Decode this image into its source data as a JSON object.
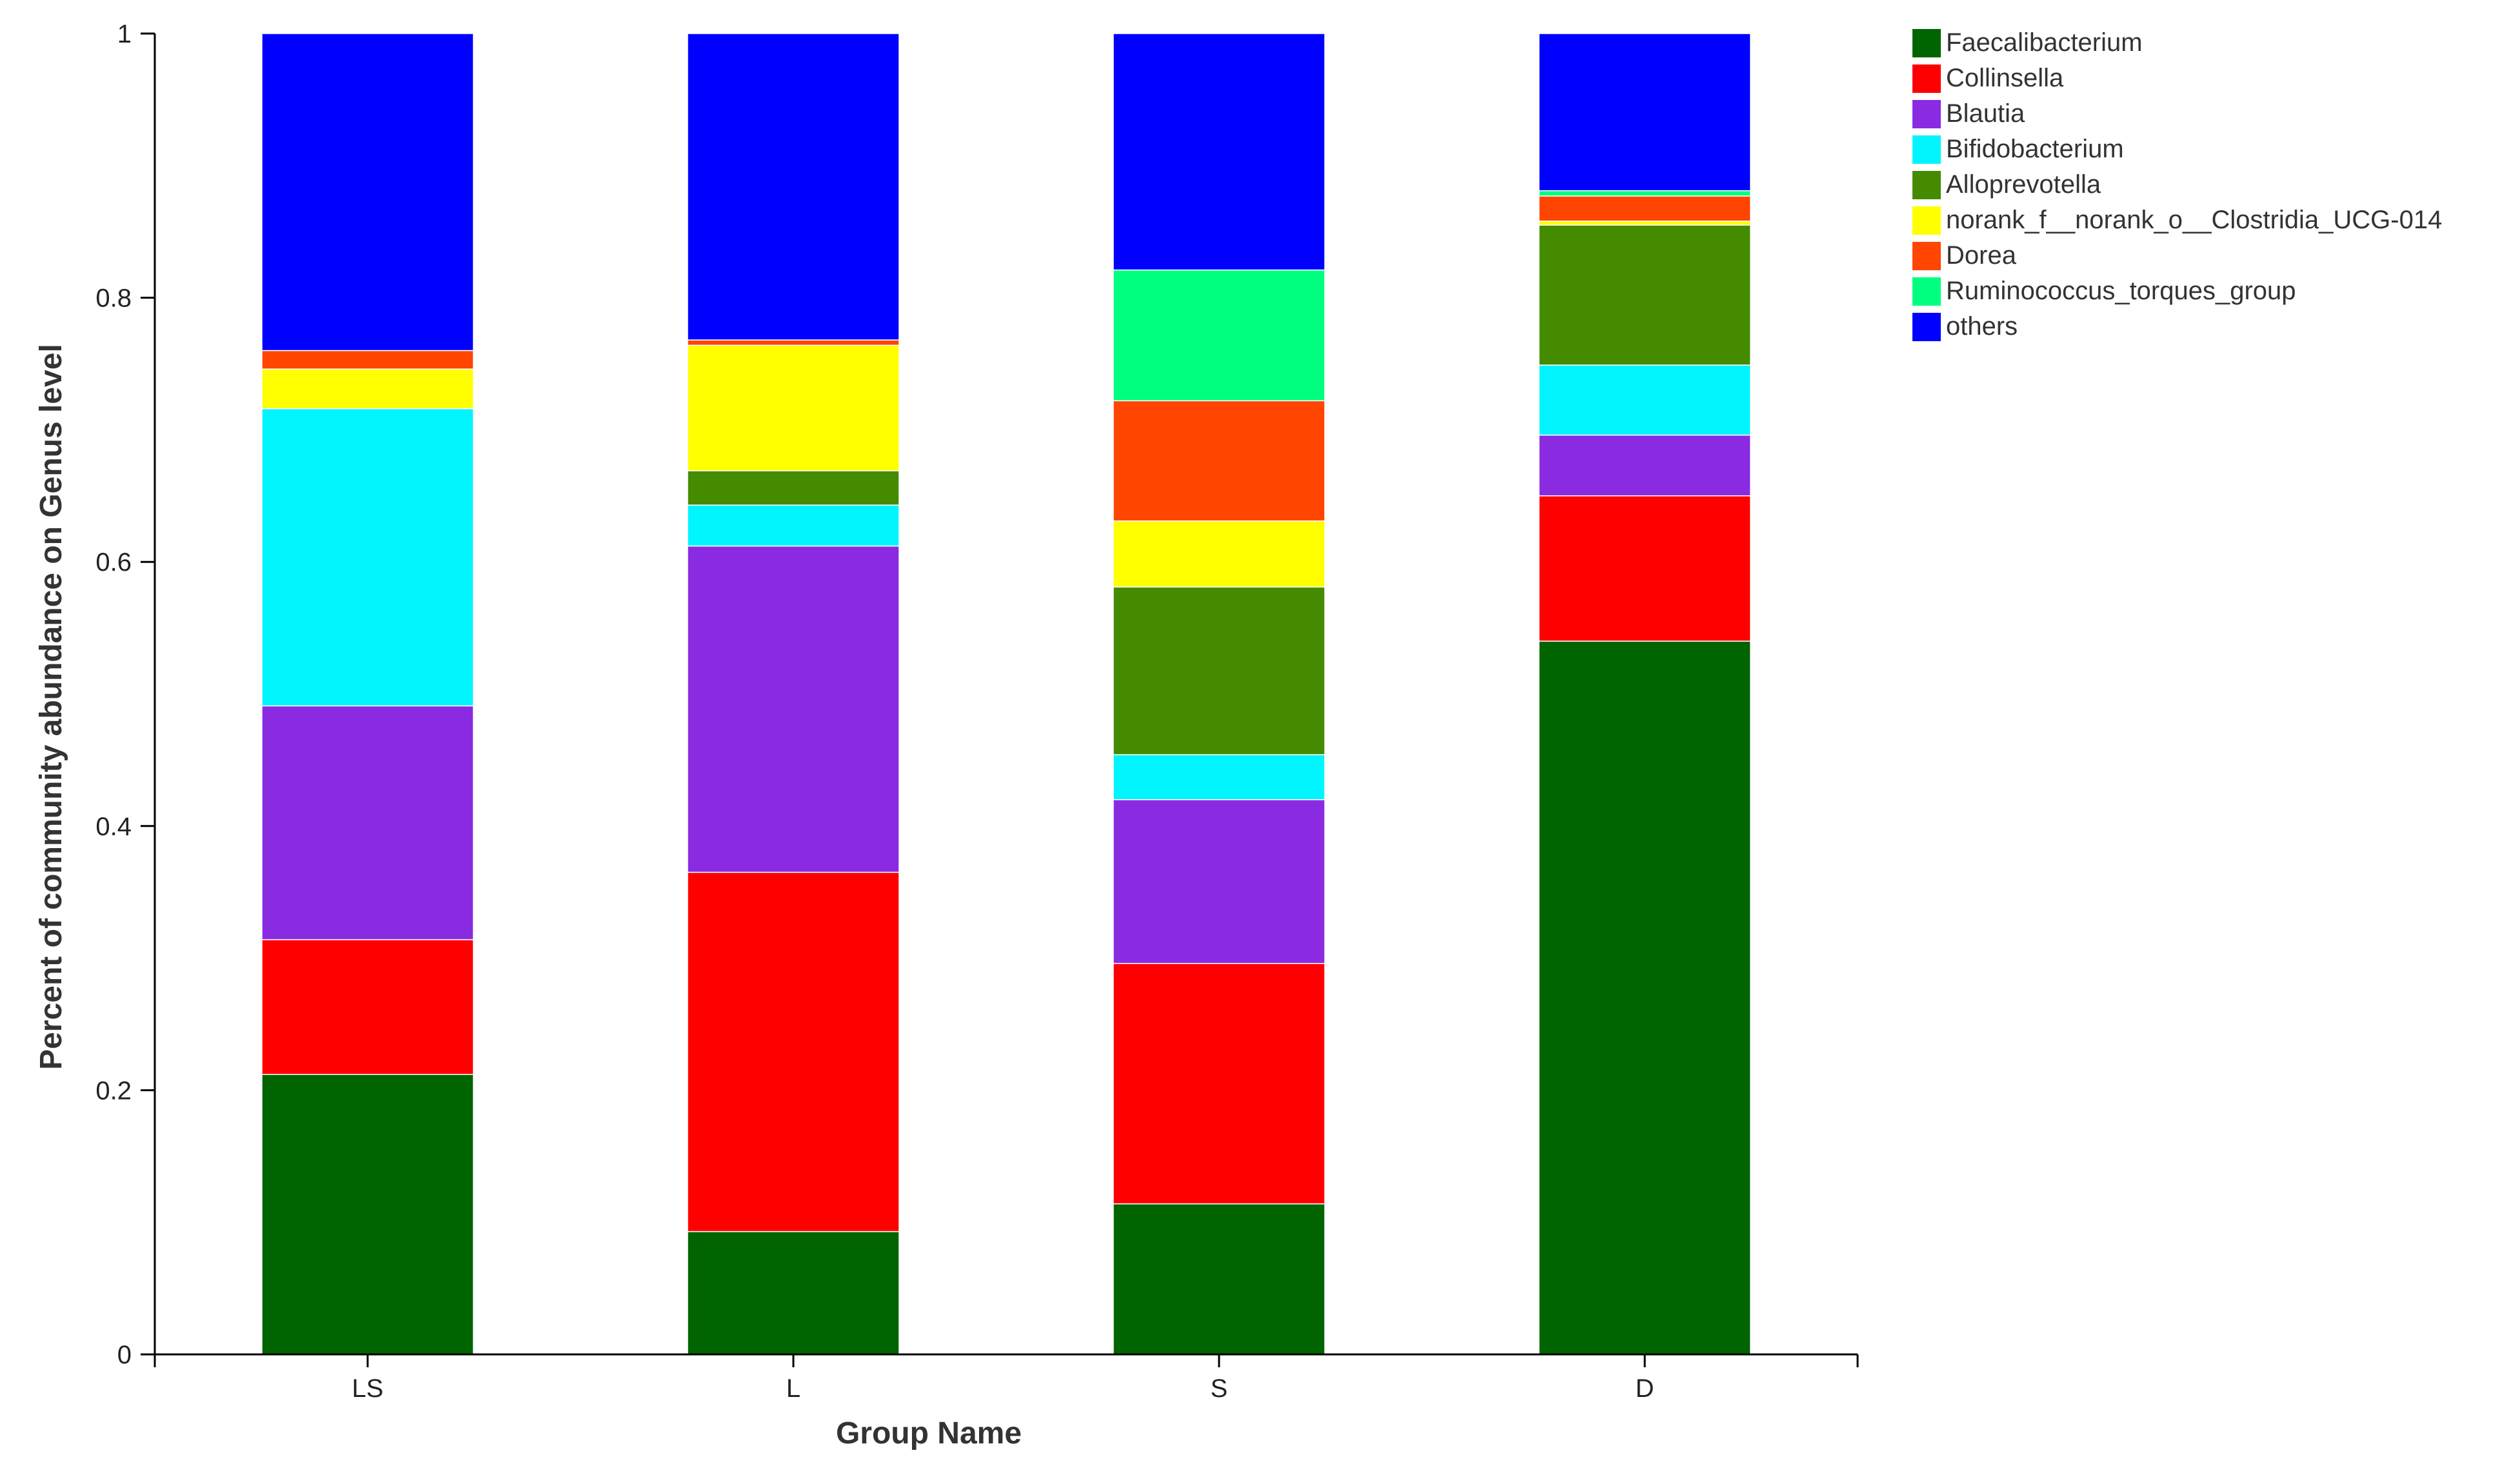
{
  "chart_data": {
    "type": "bar",
    "stacked": true,
    "categories": [
      "LS",
      "L",
      "S",
      "D"
    ],
    "xlabel": "Group Name",
    "ylabel": "Percent of community abundance on Genus level",
    "ylim": [
      0,
      1
    ],
    "yticks": [
      {
        "value": 0,
        "label": "0"
      },
      {
        "value": 0.2,
        "label": "0.2"
      },
      {
        "value": 0.4,
        "label": "0.4"
      },
      {
        "value": 0.6,
        "label": "0.6"
      },
      {
        "value": 0.8,
        "label": "0.8"
      },
      {
        "value": 1,
        "label": "1"
      }
    ],
    "grid": false,
    "legend_position": "top-right",
    "series": [
      {
        "name": "Faecalibacterium",
        "color": "#006400",
        "values": [
          0.212,
          0.093,
          0.114,
          0.54
        ]
      },
      {
        "name": "Collinsella",
        "color": "#FF0000",
        "values": [
          0.102,
          0.272,
          0.182,
          0.11
        ]
      },
      {
        "name": "Blautia",
        "color": "#8A2BE2",
        "values": [
          0.177,
          0.247,
          0.124,
          0.046
        ]
      },
      {
        "name": "Bifidobacterium",
        "color": "#00F5FF",
        "values": [
          0.225,
          0.031,
          0.034,
          0.053
        ]
      },
      {
        "name": "Alloprevotella",
        "color": "#458B00",
        "values": [
          0.0,
          0.026,
          0.127,
          0.106
        ]
      },
      {
        "name": "norank_f__norank_o__Clostridia_UCG-014",
        "color": "#FFFF00",
        "values": [
          0.03,
          0.095,
          0.05,
          0.003
        ]
      },
      {
        "name": "Dorea",
        "color": "#FF4500",
        "values": [
          0.014,
          0.004,
          0.091,
          0.019
        ]
      },
      {
        "name": "Ruminococcus_torques_group",
        "color": "#00FF7F",
        "values": [
          0.0,
          0.0,
          0.099,
          0.004
        ]
      },
      {
        "name": "others",
        "color": "#0000FF",
        "values": [
          0.24,
          0.232,
          0.179,
          0.119
        ]
      }
    ]
  }
}
